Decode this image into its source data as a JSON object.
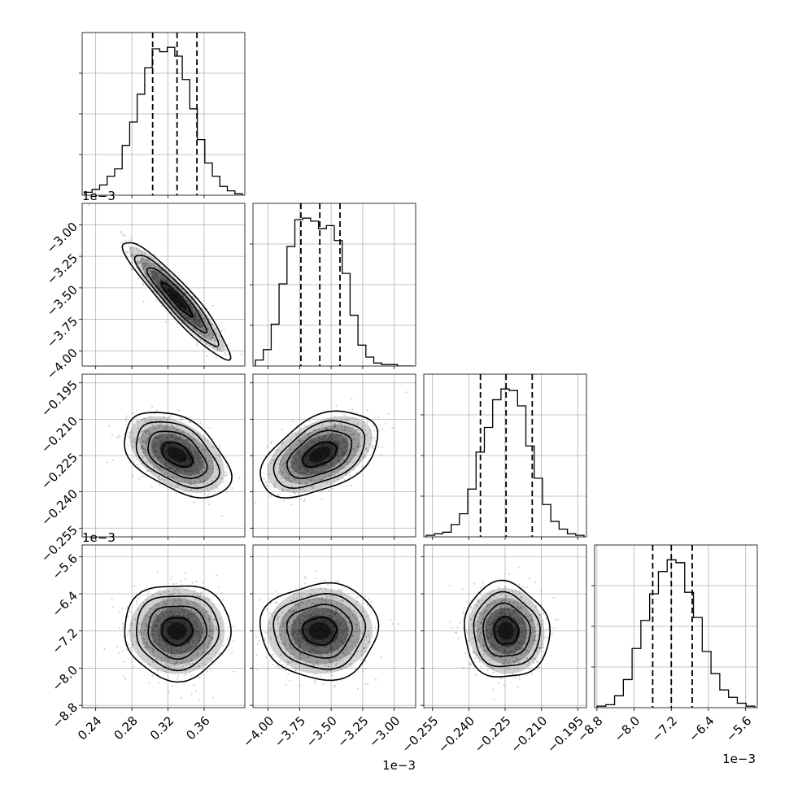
{
  "colors": {
    "axis": "#000000",
    "grid": "#b0b0b0",
    "hist": "#000000",
    "quantile": "#000000",
    "density": "#000000",
    "scatter": "#7f7f7f"
  },
  "chart_data": {
    "type": "corner",
    "grid": true,
    "params": [
      {
        "id": "p1",
        "range": [
          0.225,
          0.405
        ],
        "ticks": [
          0.24,
          0.28,
          0.32,
          0.36
        ],
        "tick_labels": [
          "0.24",
          "0.28",
          "0.32",
          "0.36"
        ],
        "quantiles": [
          0.303,
          0.33,
          0.352
        ],
        "offset": "",
        "hist_y_offset": "1e−3"
      },
      {
        "id": "p2",
        "range": [
          -4.12,
          -2.83
        ],
        "ticks": [
          -4.0,
          -3.75,
          -3.5,
          -3.25,
          -3.0
        ],
        "tick_labels": [
          "−4.00",
          "−3.75",
          "−3.50",
          "−3.25",
          "−3.00"
        ],
        "quantiles": [
          -3.74,
          -3.59,
          -3.43
        ],
        "offset": "1e−3"
      },
      {
        "id": "p3",
        "range": [
          -0.2586,
          -0.1914
        ],
        "ticks": [
          -0.255,
          -0.24,
          -0.225,
          -0.21,
          -0.195
        ],
        "tick_labels": [
          "−0.255",
          "−0.240",
          "−0.225",
          "−0.210",
          "−0.195"
        ],
        "quantiles": [
          -0.2352,
          -0.2246,
          -0.2138
        ],
        "offset": "1e−3"
      },
      {
        "id": "p4",
        "range": [
          -8.85,
          -5.35
        ],
        "ticks": [
          -8.8,
          -8.0,
          -7.2,
          -6.4,
          -5.6
        ],
        "tick_labels": [
          "−8.8",
          "−8.0",
          "−7.2",
          "−6.4",
          "−5.6"
        ],
        "quantiles": [
          -7.6,
          -7.2,
          -6.75
        ],
        "offset": "1e−3"
      }
    ],
    "histograms": [
      {
        "param": "p1",
        "counts": [
          2,
          4,
          7,
          13,
          18,
          34,
          50,
          69,
          87,
          100,
          98,
          101,
          95,
          79,
          59,
          38,
          22,
          13,
          6,
          3,
          1
        ]
      },
      {
        "param": "p2",
        "counts": [
          4,
          11,
          28,
          55,
          80,
          98,
          99,
          97,
          92,
          94,
          84,
          62,
          34,
          14,
          6,
          2,
          1,
          1,
          0,
          0
        ]
      },
      {
        "param": "p3",
        "counts": [
          1,
          2,
          3,
          8,
          15,
          31,
          55,
          71,
          89,
          96,
          95,
          85,
          59,
          38,
          21,
          10,
          5,
          2,
          1
        ]
      },
      {
        "param": "p4",
        "counts": [
          1,
          2,
          8,
          19,
          40,
          59,
          77,
          92,
          100,
          98,
          78,
          61,
          38,
          23,
          12,
          7,
          3,
          1
        ]
      }
    ],
    "pairs": [
      {
        "x": "p1",
        "y": "p2",
        "mean": [
          0.33,
          -3.59
        ],
        "sd": [
          0.024,
          0.19
        ],
        "corr": -0.93
      },
      {
        "x": "p1",
        "y": "p3",
        "mean": [
          0.33,
          -0.2246
        ],
        "sd": [
          0.024,
          0.0072
        ],
        "corr": -0.45
      },
      {
        "x": "p2",
        "y": "p3",
        "mean": [
          -3.59,
          -0.2246
        ],
        "sd": [
          0.19,
          0.0072
        ],
        "corr": 0.45
      },
      {
        "x": "p1",
        "y": "p4",
        "mean": [
          0.33,
          -7.2
        ],
        "sd": [
          0.024,
          0.42
        ],
        "corr": 0.0
      },
      {
        "x": "p2",
        "y": "p4",
        "mean": [
          -3.59,
          -7.2
        ],
        "sd": [
          0.19,
          0.42
        ],
        "corr": 0.0
      },
      {
        "x": "p3",
        "y": "p4",
        "mean": [
          -0.2246,
          -7.2
        ],
        "sd": [
          0.0072,
          0.42
        ],
        "corr": -0.05
      }
    ]
  }
}
